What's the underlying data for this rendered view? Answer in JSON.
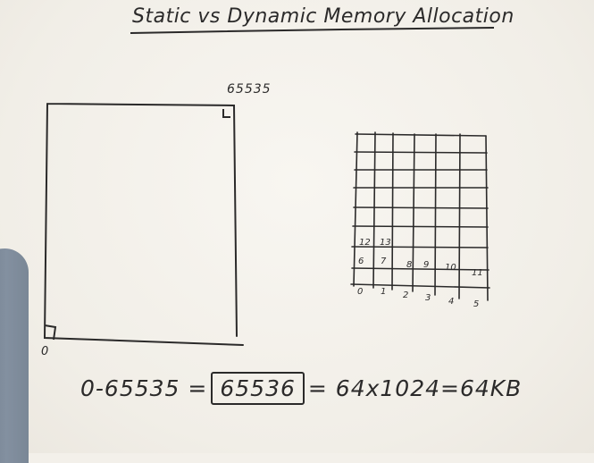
{
  "title": "Static vs Dynamic Memory Allocation",
  "memory_block": {
    "top_address": "65535",
    "bottom_address": "0"
  },
  "equation": {
    "left": "0-65535 =",
    "boxed": "65536",
    "right": "= 64x1024=64KB"
  },
  "grid": {
    "bottom_labels": [
      "0",
      "1",
      "2",
      "3",
      "4",
      "5"
    ],
    "row2_labels": [
      "6",
      "7",
      "8",
      "9",
      "10",
      "11"
    ],
    "row3_labels": [
      "12",
      "13"
    ]
  },
  "colors": {
    "ink": "#2b2a2a",
    "board": "#f3f0ea"
  }
}
